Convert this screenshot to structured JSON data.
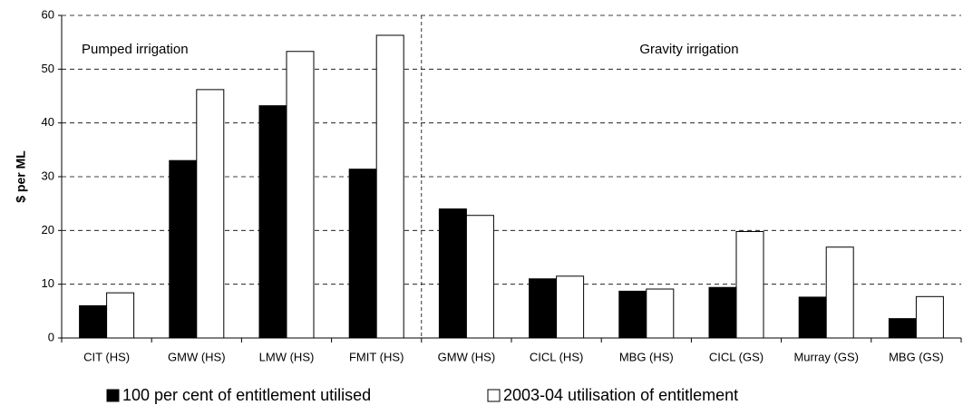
{
  "chart_data": {
    "type": "bar",
    "ylabel": "$ per ML",
    "categories": [
      "CIT (HS)",
      "GMW (HS)",
      "LMW (HS)",
      "FMIT (HS)",
      "GMW (HS)",
      "CICL (HS)",
      "MBG (HS)",
      "CICL (GS)",
      "Murray (GS)",
      "MBG (GS)"
    ],
    "series": [
      {
        "name": "100 per cent of entitlement utilised",
        "color": "#000000",
        "values": [
          6,
          33,
          43.2,
          31.4,
          24,
          11,
          8.7,
          9.4,
          7.6,
          3.6
        ]
      },
      {
        "name": "2003-04 utilisation of entitlement",
        "color": "#ffffff",
        "values": [
          8.4,
          46.2,
          53.3,
          56.3,
          22.8,
          11.5,
          9.1,
          19.8,
          16.9,
          7.7
        ]
      }
    ],
    "annotations": [
      "Pumped irrigation",
      "Gravity irrigation"
    ],
    "ylim": [
      0,
      60
    ],
    "yticks": [
      0,
      10,
      20,
      30,
      40,
      50,
      60
    ],
    "grid": true
  }
}
